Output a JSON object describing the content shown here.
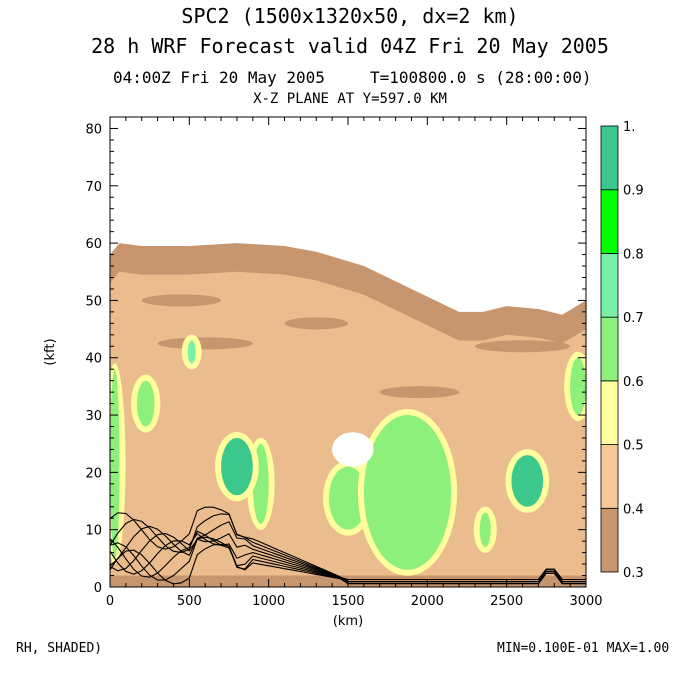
{
  "header": {
    "title_line1": "SPC2 (1500x1320x50, dx=2 km)",
    "title_line2": "28 h  WRF Forecast valid 04Z Fri 20 May 2005",
    "valid_time": "04:00Z Fri 20 May 2005",
    "model_time": "T=100800.0 s (28:00:00)",
    "plane": "X-Z PLANE AT Y=597.0 KM"
  },
  "footer": {
    "field_label": "RH, SHADED)",
    "range_label": "MIN=0.100E-01 MAX=1.00"
  },
  "colors": {
    "c03": "#c8966e",
    "c04": "#f7c898",
    "c05": "#ffff9e",
    "c06": "#8cf07a",
    "c07": "#78f0aa",
    "c08": "#00ff00",
    "c09": "#3cc88c",
    "contour": "#000000"
  },
  "chart_data": {
    "type": "heatmap",
    "title": "X-Z PLANE AT Y=597.0 KM",
    "variable": "RH",
    "xlabel": "(km)",
    "ylabel": "(kft)",
    "xlim": [
      0,
      3000
    ],
    "ylim": [
      0,
      82
    ],
    "xticks": [
      0,
      500,
      1000,
      1500,
      2000,
      2500,
      3000
    ],
    "yticks": [
      0,
      10,
      20,
      30,
      40,
      50,
      60,
      70,
      80
    ],
    "colorbar": {
      "levels": [
        0.3,
        0.4,
        0.5,
        0.6,
        0.7,
        0.8,
        0.9,
        1.0
      ],
      "labels": [
        "0.3",
        "0.4",
        "0.5",
        "0.6",
        "0.7",
        "0.8",
        "0.9",
        "1."
      ]
    },
    "cloud_top_kft": {
      "x": [
        0,
        60,
        200,
        500,
        800,
        1100,
        1300,
        1600,
        1900,
        2200,
        2350,
        2500,
        2700,
        2850,
        3000
      ],
      "top": [
        58,
        60,
        59.5,
        59.5,
        60,
        59.5,
        58.5,
        56,
        52,
        48,
        48,
        49,
        48.5,
        47.5,
        50
      ]
    },
    "moist_regions": [
      {
        "level": 0.6,
        "x_range": [
          0,
          60
        ],
        "z_range": [
          5,
          38
        ]
      },
      {
        "level": 0.6,
        "x_range": [
          170,
          280
        ],
        "z_range": [
          28,
          36
        ]
      },
      {
        "level": 0.7,
        "x_range": [
          490,
          540
        ],
        "z_range": [
          39,
          43
        ]
      },
      {
        "level": 0.6,
        "x_range": [
          900,
          1000
        ],
        "z_range": [
          11,
          25
        ]
      },
      {
        "level": 0.9,
        "x_range": [
          700,
          900
        ],
        "z_range": [
          16,
          26
        ]
      },
      {
        "level": 0.6,
        "x_range": [
          1380,
          1620
        ],
        "z_range": [
          10,
          21
        ]
      },
      {
        "level": 0.6,
        "x_range": [
          1600,
          2150
        ],
        "z_range": [
          3,
          30
        ]
      },
      {
        "level": 0.9,
        "x_range": [
          2530,
          2730
        ],
        "z_range": [
          14,
          23
        ]
      },
      {
        "level": 0.6,
        "x_range": [
          2330,
          2400
        ],
        "z_range": [
          7,
          13
        ]
      },
      {
        "level": 0.6,
        "x_range": [
          2900,
          3000
        ],
        "z_range": [
          30,
          40
        ]
      }
    ],
    "void_region": {
      "x_range": [
        1360,
        1700
      ],
      "z_range": [
        21,
        27
      ]
    },
    "contours_note": "low-level black contour lines, surface to ~12 kft, x 0-3000"
  }
}
